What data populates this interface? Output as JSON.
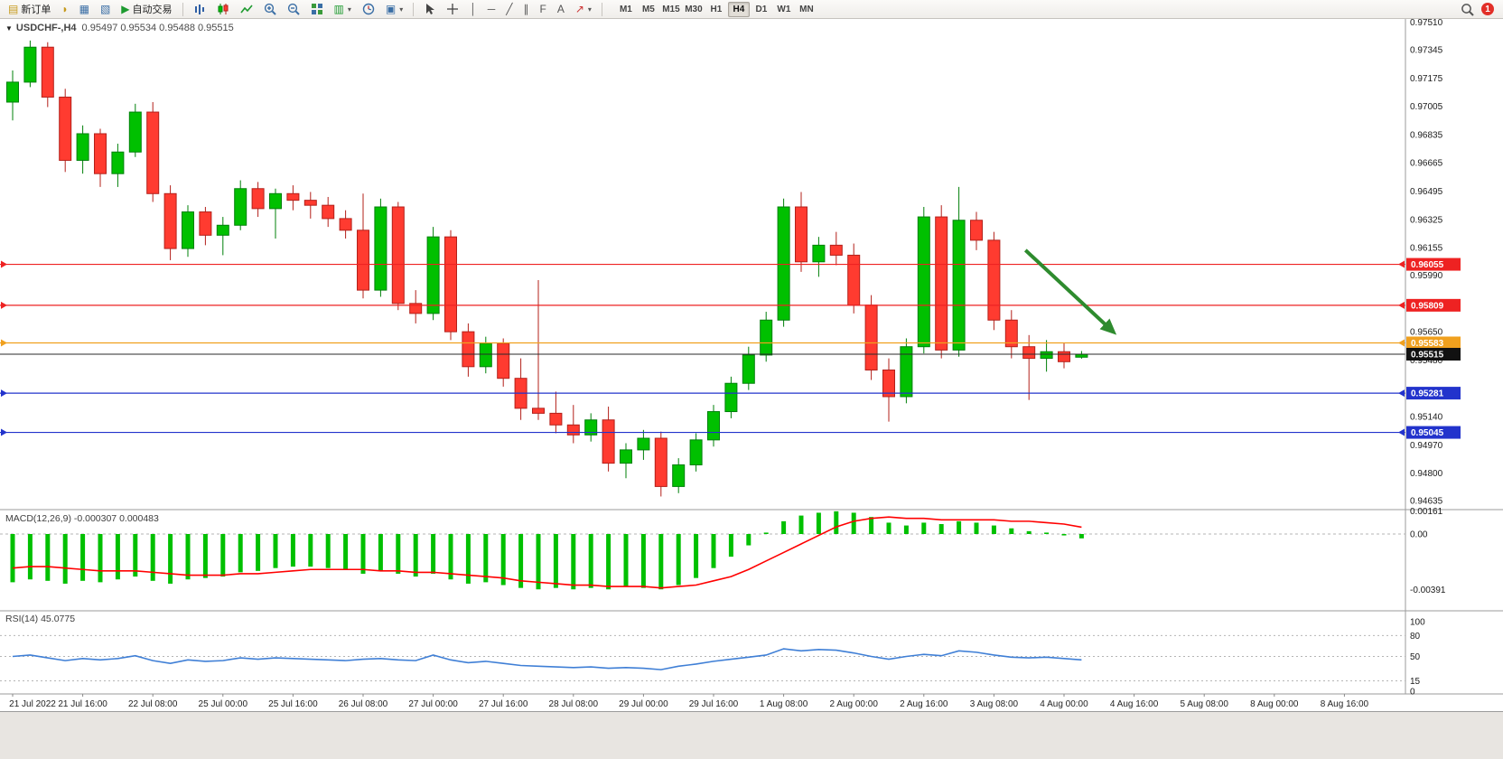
{
  "toolbar": {
    "new_order_label": "新订单",
    "autotrade_label": "自动交易",
    "timeframes": [
      "M1",
      "M5",
      "M15",
      "M30",
      "H1",
      "H4",
      "D1",
      "W1",
      "MN"
    ],
    "active_timeframe": "H4",
    "badge_count": "1"
  },
  "chart": {
    "menu_arrow": "▼",
    "symbol_title": "USDCHF-,H4",
    "ohlc_text": "0.95497 0.95534 0.95488 0.95515"
  },
  "chart_data": {
    "type": "candlestick",
    "symbol": "USDCHF",
    "timeframe": "H4",
    "title": "USDCHF-,H4 0.95497 0.95534 0.95488 0.95515",
    "price_axis_range": [
      0.9457,
      0.97535
    ],
    "price_axis_ticks": [
      "0.97510",
      "0.97345",
      "0.97175",
      "0.97005",
      "0.96835",
      "0.96665",
      "0.96495",
      "0.96325",
      "0.96155",
      "0.95990",
      "0.95650",
      "0.95480",
      "0.95140",
      "0.94970",
      "0.94800",
      "0.94635"
    ],
    "time_axis_ticks": [
      "21 Jul 2022",
      "21 Jul 16:00",
      "22 Jul 08:00",
      "25 Jul 00:00",
      "25 Jul 16:00",
      "26 Jul 08:00",
      "27 Jul 00:00",
      "27 Jul 16:00",
      "28 Jul 08:00",
      "29 Jul 00:00",
      "29 Jul 16:00",
      "1 Aug 08:00",
      "2 Aug 00:00",
      "2 Aug 16:00",
      "3 Aug 08:00",
      "4 Aug 00:00",
      "4 Aug 16:00",
      "5 Aug 08:00",
      "8 Aug 00:00",
      "8 Aug 16:00"
    ],
    "candles": [
      [
        0.9703,
        0.9722,
        0.9692,
        0.9715
      ],
      [
        0.9715,
        0.974,
        0.9712,
        0.9736
      ],
      [
        0.9736,
        0.9739,
        0.97,
        0.9706
      ],
      [
        0.9706,
        0.9711,
        0.9661,
        0.9668
      ],
      [
        0.9668,
        0.9689,
        0.966,
        0.9684
      ],
      [
        0.9684,
        0.9687,
        0.9652,
        0.966
      ],
      [
        0.966,
        0.9678,
        0.9652,
        0.9673
      ],
      [
        0.9673,
        0.9702,
        0.967,
        0.9697
      ],
      [
        0.9697,
        0.9703,
        0.9643,
        0.9648
      ],
      [
        0.9648,
        0.9653,
        0.9608,
        0.9615
      ],
      [
        0.9615,
        0.9641,
        0.961,
        0.9637
      ],
      [
        0.9637,
        0.964,
        0.9617,
        0.9623
      ],
      [
        0.9623,
        0.9634,
        0.9611,
        0.9629
      ],
      [
        0.9629,
        0.9656,
        0.9626,
        0.9651
      ],
      [
        0.9651,
        0.9655,
        0.9634,
        0.9639
      ],
      [
        0.9639,
        0.9651,
        0.9621,
        0.9648
      ],
      [
        0.9648,
        0.9653,
        0.9638,
        0.9644
      ],
      [
        0.9644,
        0.9649,
        0.9633,
        0.9641
      ],
      [
        0.9641,
        0.9646,
        0.9628,
        0.9633
      ],
      [
        0.9633,
        0.9638,
        0.9621,
        0.9626
      ],
      [
        0.9626,
        0.9648,
        0.9585,
        0.959
      ],
      [
        0.959,
        0.9645,
        0.9586,
        0.964
      ],
      [
        0.964,
        0.9643,
        0.9578,
        0.9582
      ],
      [
        0.9582,
        0.959,
        0.957,
        0.9576
      ],
      [
        0.9576,
        0.9628,
        0.9572,
        0.9622
      ],
      [
        0.9622,
        0.9626,
        0.956,
        0.9565
      ],
      [
        0.9565,
        0.957,
        0.9538,
        0.9544
      ],
      [
        0.9544,
        0.9562,
        0.954,
        0.9558
      ],
      [
        0.9558,
        0.9561,
        0.9532,
        0.9537
      ],
      [
        0.9537,
        0.9549,
        0.9512,
        0.9519
      ],
      [
        0.9519,
        0.9596,
        0.9512,
        0.9516
      ],
      [
        0.9516,
        0.9529,
        0.9504,
        0.9509
      ],
      [
        0.9509,
        0.9521,
        0.9498,
        0.9503
      ],
      [
        0.9503,
        0.9516,
        0.9499,
        0.9512
      ],
      [
        0.9512,
        0.952,
        0.9481,
        0.9486
      ],
      [
        0.9486,
        0.9498,
        0.9477,
        0.9494
      ],
      [
        0.9494,
        0.9506,
        0.9488,
        0.9501
      ],
      [
        0.9501,
        0.9505,
        0.9466,
        0.9472
      ],
      [
        0.9472,
        0.9489,
        0.9468,
        0.9485
      ],
      [
        0.9485,
        0.9504,
        0.9481,
        0.95
      ],
      [
        0.95,
        0.9521,
        0.9496,
        0.9517
      ],
      [
        0.9517,
        0.9538,
        0.9513,
        0.9534
      ],
      [
        0.9534,
        0.9556,
        0.953,
        0.9551
      ],
      [
        0.9551,
        0.9577,
        0.9547,
        0.9572
      ],
      [
        0.9572,
        0.9645,
        0.9568,
        0.964
      ],
      [
        0.964,
        0.9649,
        0.9601,
        0.9607
      ],
      [
        0.9607,
        0.9622,
        0.9598,
        0.9617
      ],
      [
        0.9617,
        0.9625,
        0.9605,
        0.9611
      ],
      [
        0.9611,
        0.9618,
        0.9576,
        0.9581
      ],
      [
        0.9581,
        0.9587,
        0.9536,
        0.9542
      ],
      [
        0.9542,
        0.9549,
        0.9511,
        0.9526
      ],
      [
        0.9526,
        0.9561,
        0.9522,
        0.9556
      ],
      [
        0.9556,
        0.964,
        0.9552,
        0.9634
      ],
      [
        0.9634,
        0.9641,
        0.9549,
        0.9554
      ],
      [
        0.9554,
        0.9652,
        0.955,
        0.9632
      ],
      [
        0.9632,
        0.9637,
        0.9614,
        0.962
      ],
      [
        0.962,
        0.9625,
        0.9566,
        0.9572
      ],
      [
        0.9572,
        0.9578,
        0.9549,
        0.9556
      ],
      [
        0.9556,
        0.9563,
        0.9524,
        0.9549
      ],
      [
        0.9549,
        0.956,
        0.9541,
        0.9553
      ],
      [
        0.9553,
        0.9558,
        0.9543,
        0.9547
      ],
      [
        0.95497,
        0.95534,
        0.95488,
        0.95515
      ]
    ],
    "colors": {
      "bull": "#00c000",
      "bear": "#ff3b30",
      "bull_stroke": "#00800a",
      "bear_stroke": "#b3201a"
    },
    "hlines": [
      {
        "price": "0.96055",
        "color": "#ee2222"
      },
      {
        "price": "0.95809",
        "color": "#ee2222"
      },
      {
        "price": "0.95583",
        "color": "#f0a01e"
      },
      {
        "price": "0.95281",
        "color": "#2233cc"
      },
      {
        "price": "0.95045",
        "color": "#2233cc"
      }
    ],
    "current_price_label": {
      "price": "0.95515",
      "color": "#111111"
    },
    "arrow_annotation": {
      "from_bar": 57.8,
      "from_price": 0.9614,
      "to_bar": 62.8,
      "to_price": 0.9565,
      "color": "#2e8b2e"
    },
    "macd": {
      "label": "MACD(12,26,9) -0.000307 0.000483",
      "histogram_color": "#00c000",
      "signal_color": "#ff0000",
      "axis_ticks": [
        {
          "text": "0.00161",
          "value": 0.00161
        },
        {
          "text": "0.00",
          "value": 0
        },
        {
          "text": "-0.00391",
          "value": -0.00391
        }
      ],
      "histogram": [
        -0.0034,
        -0.0032,
        -0.0033,
        -0.0035,
        -0.0033,
        -0.0034,
        -0.0032,
        -0.003,
        -0.0033,
        -0.0035,
        -0.0032,
        -0.0031,
        -0.003,
        -0.0027,
        -0.0026,
        -0.0024,
        -0.0023,
        -0.0023,
        -0.0024,
        -0.0025,
        -0.0028,
        -0.0026,
        -0.0028,
        -0.003,
        -0.0028,
        -0.0032,
        -0.0035,
        -0.0034,
        -0.0036,
        -0.0038,
        -0.0039,
        -0.0038,
        -0.0039,
        -0.0038,
        -0.0039,
        -0.0037,
        -0.0038,
        -0.0039,
        -0.0036,
        -0.0031,
        -0.0024,
        -0.0016,
        -0.0008,
        0.0001,
        0.0009,
        0.0013,
        0.0015,
        0.0016,
        0.0015,
        0.0012,
        0.0008,
        0.0006,
        0.0008,
        0.0007,
        0.0009,
        0.0008,
        0.0006,
        0.0004,
        0.0002,
        0.0001,
        -0.0001,
        -0.000307
      ],
      "signal": [
        -0.0024,
        -0.0023,
        -0.0023,
        -0.0024,
        -0.0025,
        -0.0026,
        -0.0026,
        -0.0026,
        -0.0027,
        -0.0028,
        -0.0029,
        -0.0029,
        -0.0029,
        -0.0028,
        -0.0028,
        -0.0027,
        -0.0026,
        -0.0025,
        -0.0025,
        -0.0025,
        -0.0025,
        -0.0026,
        -0.0026,
        -0.0027,
        -0.0027,
        -0.0028,
        -0.0029,
        -0.003,
        -0.0031,
        -0.0033,
        -0.0034,
        -0.0035,
        -0.0036,
        -0.0036,
        -0.0037,
        -0.0037,
        -0.0037,
        -0.0038,
        -0.0037,
        -0.0036,
        -0.0033,
        -0.003,
        -0.0025,
        -0.0019,
        -0.0013,
        -0.0007,
        -0.0001,
        0.0005,
        0.0009,
        0.0011,
        0.0012,
        0.0011,
        0.0011,
        0.001,
        0.001,
        0.001,
        0.001,
        0.0009,
        0.0009,
        0.0008,
        0.0007,
        0.000483
      ]
    },
    "rsi": {
      "label": "RSI(14) 45.0775",
      "line_color": "#3f7fd6",
      "levels": [
        80,
        50,
        15
      ],
      "axis_ticks": [
        {
          "text": "100",
          "value": 100
        },
        {
          "text": "80",
          "value": 80
        },
        {
          "text": "50",
          "value": 50
        },
        {
          "text": "15",
          "value": 15
        },
        {
          "text": "0",
          "value": 0
        }
      ],
      "values": [
        50,
        52,
        48,
        44,
        47,
        45,
        47,
        51,
        44,
        40,
        45,
        43,
        44,
        48,
        46,
        48,
        47,
        46,
        45,
        44,
        46,
        47,
        45,
        44,
        52,
        45,
        41,
        43,
        40,
        37,
        36,
        35,
        34,
        35,
        33,
        34,
        33,
        31,
        36,
        39,
        43,
        46,
        49,
        52,
        61,
        58,
        60,
        59,
        55,
        50,
        46,
        50,
        53,
        51,
        58,
        56,
        52,
        49,
        48,
        49,
        47,
        45.0775
      ]
    }
  }
}
